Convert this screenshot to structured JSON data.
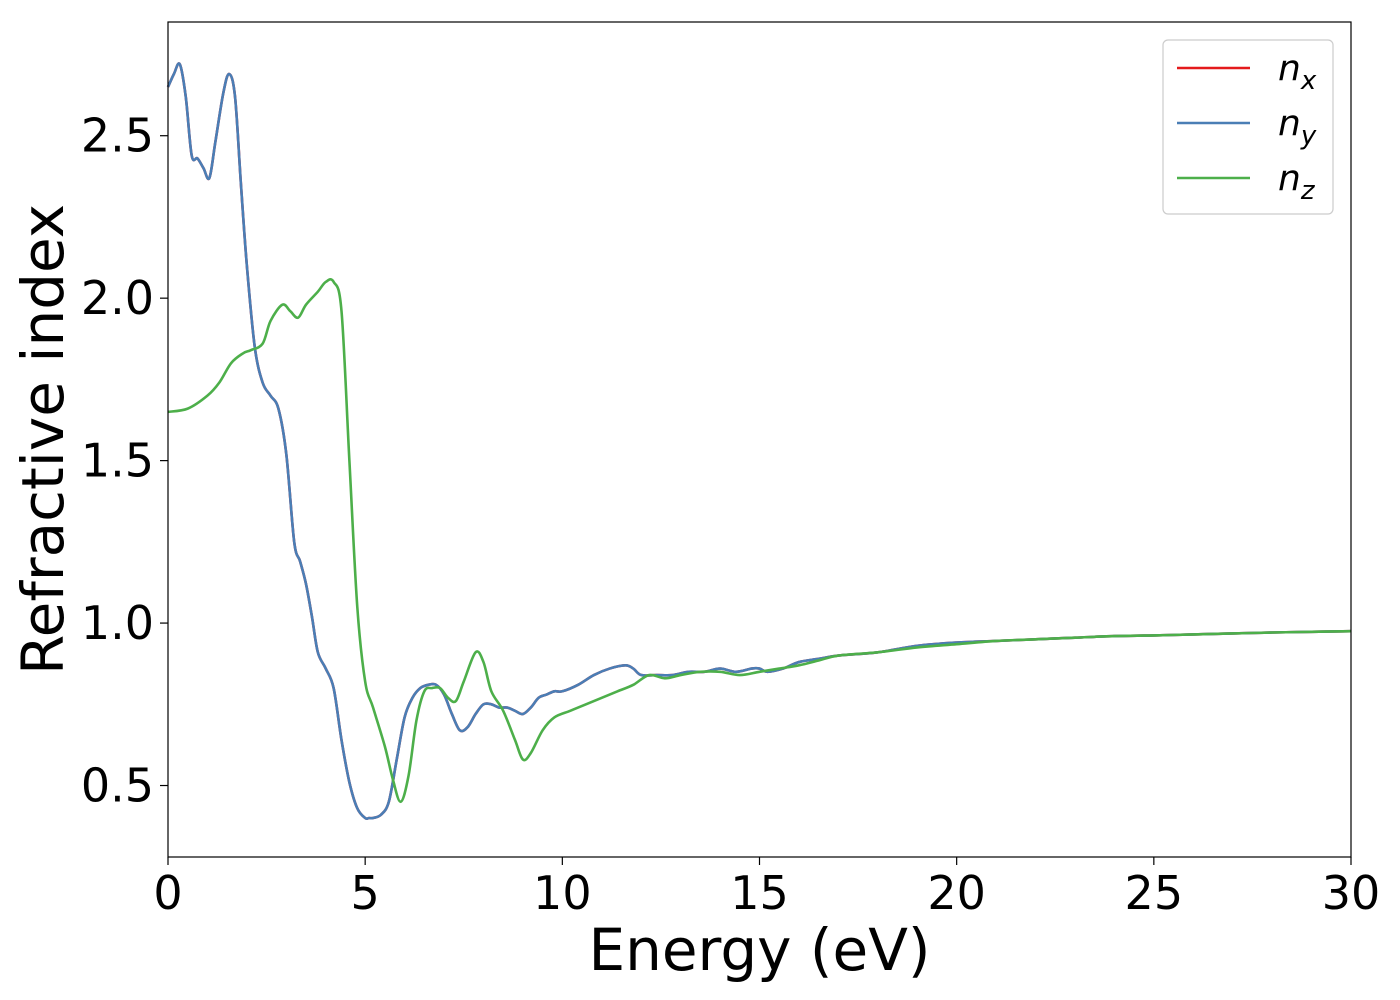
{
  "chart_data": {
    "type": "line",
    "title": "",
    "xlabel": "Energy (eV)",
    "ylabel": "Refractive index",
    "xlim": [
      0,
      30
    ],
    "ylim": [
      0.28,
      2.85
    ],
    "xticks": [
      0,
      5,
      10,
      15,
      20,
      25,
      30
    ],
    "xtick_labels": [
      "0",
      "5",
      "10",
      "15",
      "20",
      "25",
      "30"
    ],
    "yticks": [
      0.5,
      1.0,
      1.5,
      2.0,
      2.5
    ],
    "ytick_labels": [
      "0.5",
      "1.0",
      "1.5",
      "2.0",
      "2.5"
    ],
    "grid": false,
    "legend_position": "top-right",
    "series": [
      {
        "name": "n",
        "subscript": "x",
        "color": "#e41a1c",
        "x": [
          0,
          0.15,
          0.3,
          0.45,
          0.6,
          0.75,
          0.9,
          1.05,
          1.2,
          1.4,
          1.55,
          1.7,
          1.85,
          2.0,
          2.2,
          2.4,
          2.6,
          2.8,
          3.0,
          3.2,
          3.35,
          3.5,
          3.65,
          3.8,
          4.0,
          4.2,
          4.4,
          4.6,
          4.8,
          5.0,
          5.1,
          5.2,
          5.4,
          5.6,
          5.8,
          6.0,
          6.2,
          6.4,
          6.6,
          6.8,
          7.0,
          7.2,
          7.4,
          7.6,
          7.8,
          8.0,
          8.2,
          8.4,
          8.6,
          8.8,
          9.0,
          9.2,
          9.4,
          9.6,
          9.8,
          10.0,
          10.4,
          10.8,
          11.2,
          11.6,
          11.8,
          12.0,
          12.4,
          12.8,
          13.2,
          13.6,
          14.0,
          14.4,
          14.8,
          15.0,
          15.2,
          15.6,
          16.0,
          16.5,
          17.0,
          18.0,
          19.0,
          20.0,
          21.0,
          22.0,
          23.0,
          24.0,
          25.0,
          26.0,
          27.0,
          28.0,
          29.0,
          30.0
        ],
        "y": [
          2.65,
          2.69,
          2.72,
          2.62,
          2.44,
          2.43,
          2.4,
          2.37,
          2.48,
          2.63,
          2.69,
          2.62,
          2.35,
          2.1,
          1.85,
          1.74,
          1.7,
          1.66,
          1.52,
          1.25,
          1.19,
          1.12,
          1.02,
          0.91,
          0.86,
          0.8,
          0.64,
          0.51,
          0.43,
          0.4,
          0.4,
          0.4,
          0.41,
          0.45,
          0.58,
          0.71,
          0.77,
          0.8,
          0.81,
          0.81,
          0.78,
          0.72,
          0.67,
          0.68,
          0.72,
          0.75,
          0.75,
          0.74,
          0.74,
          0.73,
          0.72,
          0.74,
          0.77,
          0.78,
          0.79,
          0.79,
          0.81,
          0.84,
          0.86,
          0.87,
          0.86,
          0.84,
          0.84,
          0.84,
          0.85,
          0.85,
          0.86,
          0.85,
          0.86,
          0.86,
          0.85,
          0.86,
          0.88,
          0.89,
          0.9,
          0.91,
          0.93,
          0.94,
          0.945,
          0.95,
          0.955,
          0.96,
          0.962,
          0.965,
          0.968,
          0.971,
          0.973,
          0.975
        ]
      },
      {
        "name": "n",
        "subscript": "y",
        "color": "#4a7eb5",
        "x": [
          0,
          0.15,
          0.3,
          0.45,
          0.6,
          0.75,
          0.9,
          1.05,
          1.2,
          1.4,
          1.55,
          1.7,
          1.85,
          2.0,
          2.2,
          2.4,
          2.6,
          2.8,
          3.0,
          3.2,
          3.35,
          3.5,
          3.65,
          3.8,
          4.0,
          4.2,
          4.4,
          4.6,
          4.8,
          5.0,
          5.1,
          5.2,
          5.4,
          5.6,
          5.8,
          6.0,
          6.2,
          6.4,
          6.6,
          6.8,
          7.0,
          7.2,
          7.4,
          7.6,
          7.8,
          8.0,
          8.2,
          8.4,
          8.6,
          8.8,
          9.0,
          9.2,
          9.4,
          9.6,
          9.8,
          10.0,
          10.4,
          10.8,
          11.2,
          11.6,
          11.8,
          12.0,
          12.4,
          12.8,
          13.2,
          13.6,
          14.0,
          14.4,
          14.8,
          15.0,
          15.2,
          15.6,
          16.0,
          16.5,
          17.0,
          18.0,
          19.0,
          20.0,
          21.0,
          22.0,
          23.0,
          24.0,
          25.0,
          26.0,
          27.0,
          28.0,
          29.0,
          30.0
        ],
        "y": [
          2.65,
          2.69,
          2.72,
          2.62,
          2.44,
          2.43,
          2.4,
          2.37,
          2.48,
          2.63,
          2.69,
          2.62,
          2.35,
          2.1,
          1.85,
          1.74,
          1.7,
          1.66,
          1.52,
          1.25,
          1.19,
          1.12,
          1.02,
          0.91,
          0.86,
          0.8,
          0.64,
          0.51,
          0.43,
          0.4,
          0.4,
          0.4,
          0.41,
          0.45,
          0.58,
          0.71,
          0.77,
          0.8,
          0.81,
          0.81,
          0.78,
          0.72,
          0.67,
          0.68,
          0.72,
          0.75,
          0.75,
          0.74,
          0.74,
          0.73,
          0.72,
          0.74,
          0.77,
          0.78,
          0.79,
          0.79,
          0.81,
          0.84,
          0.86,
          0.87,
          0.86,
          0.84,
          0.84,
          0.84,
          0.85,
          0.85,
          0.86,
          0.85,
          0.86,
          0.86,
          0.85,
          0.86,
          0.88,
          0.89,
          0.9,
          0.91,
          0.93,
          0.94,
          0.945,
          0.95,
          0.955,
          0.96,
          0.962,
          0.965,
          0.968,
          0.971,
          0.973,
          0.975
        ]
      },
      {
        "name": "n",
        "subscript": "z",
        "color": "#4daf4a",
        "x": [
          0,
          0.5,
          1.0,
          1.3,
          1.6,
          1.9,
          2.1,
          2.4,
          2.6,
          2.9,
          3.1,
          3.3,
          3.5,
          3.8,
          4.0,
          4.2,
          4.4,
          4.6,
          4.8,
          5.0,
          5.2,
          5.5,
          5.7,
          5.9,
          6.1,
          6.3,
          6.5,
          6.7,
          6.9,
          7.1,
          7.3,
          7.5,
          7.8,
          8.0,
          8.2,
          8.5,
          8.8,
          9.0,
          9.2,
          9.5,
          9.8,
          10.2,
          10.6,
          11.0,
          11.4,
          11.8,
          12.2,
          12.6,
          13.0,
          13.5,
          14.0,
          14.5,
          15.0,
          15.5,
          16.0,
          16.5,
          17.0,
          18.0,
          19.0,
          20.0,
          21.0,
          22.0,
          23.0,
          24.0,
          25.0,
          26.0,
          27.0,
          28.0,
          29.0,
          30.0
        ],
        "y": [
          1.65,
          1.66,
          1.7,
          1.74,
          1.8,
          1.83,
          1.84,
          1.86,
          1.93,
          1.98,
          1.96,
          1.94,
          1.98,
          2.02,
          2.05,
          2.05,
          1.96,
          1.5,
          1.05,
          0.82,
          0.74,
          0.62,
          0.52,
          0.45,
          0.53,
          0.7,
          0.79,
          0.8,
          0.8,
          0.77,
          0.76,
          0.82,
          0.91,
          0.88,
          0.79,
          0.73,
          0.64,
          0.58,
          0.6,
          0.67,
          0.71,
          0.73,
          0.75,
          0.77,
          0.79,
          0.81,
          0.84,
          0.83,
          0.84,
          0.85,
          0.85,
          0.84,
          0.85,
          0.86,
          0.87,
          0.885,
          0.9,
          0.91,
          0.925,
          0.935,
          0.945,
          0.95,
          0.955,
          0.96,
          0.962,
          0.965,
          0.968,
          0.971,
          0.973,
          0.975
        ]
      }
    ]
  }
}
